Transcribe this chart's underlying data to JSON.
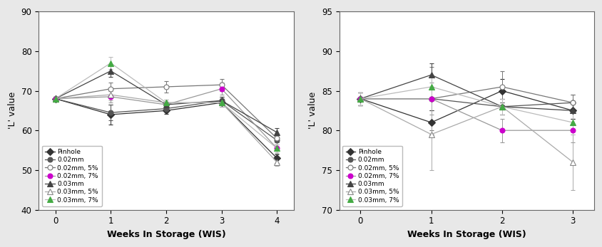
{
  "left": {
    "ylabel": "'L' value",
    "xlabel": "Weeks In Storage (WIS)",
    "xlim": [
      -0.3,
      4.3
    ],
    "ylim": [
      40,
      90
    ],
    "yticks": [
      40,
      50,
      60,
      70,
      80,
      90
    ],
    "xticks": [
      0,
      1,
      2,
      3,
      4
    ],
    "series": [
      {
        "label": "Pinhole",
        "x": [
          0,
          1,
          2,
          3,
          4
        ],
        "y": [
          68.0,
          64.0,
          65.0,
          67.0,
          53.0
        ],
        "yerr": [
          0.5,
          2.5,
          0.8,
          1.0,
          1.2
        ],
        "line_color": "#333333",
        "marker": "D",
        "markersize": 5,
        "mfc": "#333333",
        "mec": "#333333"
      },
      {
        "label": "0.02mm",
        "x": [
          0,
          1,
          2,
          3,
          4
        ],
        "y": [
          68.0,
          64.5,
          65.5,
          67.5,
          57.5
        ],
        "yerr": [
          0.5,
          2.0,
          0.8,
          1.0,
          1.0
        ],
        "line_color": "#555555",
        "marker": "o",
        "markersize": 5,
        "mfc": "#555555",
        "mec": "#555555"
      },
      {
        "label": "0.02mm, 5%",
        "x": [
          0,
          1,
          2,
          3,
          4
        ],
        "y": [
          68.0,
          70.5,
          71.0,
          71.5,
          58.0
        ],
        "yerr": [
          0.5,
          1.5,
          1.5,
          1.5,
          1.0
        ],
        "line_color": "#777777",
        "marker": "o",
        "markersize": 5,
        "mfc": "white",
        "mec": "#777777"
      },
      {
        "label": "0.02mm, 7%",
        "x": [
          0,
          1,
          2,
          3,
          4
        ],
        "y": [
          68.0,
          68.5,
          66.5,
          70.5,
          55.5
        ],
        "yerr": [
          0.5,
          1.5,
          0.8,
          1.5,
          1.5
        ],
        "line_color": "#999999",
        "marker": "o",
        "markersize": 5,
        "mfc": "#cc00cc",
        "mec": "#cc00cc"
      },
      {
        "label": "0.03mm",
        "x": [
          0,
          1,
          2,
          3,
          4
        ],
        "y": [
          68.0,
          75.0,
          66.5,
          67.5,
          59.5
        ],
        "yerr": [
          0.5,
          1.5,
          0.8,
          1.0,
          1.0
        ],
        "line_color": "#444444",
        "marker": "^",
        "markersize": 6,
        "mfc": "#444444",
        "mec": "#444444"
      },
      {
        "label": "0.03mm, 5%",
        "x": [
          0,
          1,
          2,
          3,
          4
        ],
        "y": [
          68.0,
          69.0,
          67.0,
          67.0,
          52.0
        ],
        "yerr": [
          0.5,
          1.5,
          0.8,
          1.0,
          1.0
        ],
        "line_color": "#aaaaaa",
        "marker": "^",
        "markersize": 6,
        "mfc": "white",
        "mec": "#888888"
      },
      {
        "label": "0.03mm, 7%",
        "x": [
          0,
          1,
          2,
          3,
          4
        ],
        "y": [
          68.0,
          77.0,
          67.0,
          67.0,
          55.5
        ],
        "yerr": [
          0.5,
          1.5,
          0.8,
          1.0,
          1.0
        ],
        "line_color": "#bbbbbb",
        "marker": "^",
        "markersize": 6,
        "mfc": "#44aa44",
        "mec": "#44aa44"
      }
    ]
  },
  "right": {
    "ylabel": "'L' value",
    "xlabel": "Weeks In Storage (WIS)",
    "xlim": [
      -0.3,
      3.3
    ],
    "ylim": [
      70,
      95
    ],
    "yticks": [
      70,
      75,
      80,
      85,
      90,
      95
    ],
    "xticks": [
      0,
      1,
      2,
      3
    ],
    "series": [
      {
        "label": "Pinhole",
        "x": [
          0,
          1,
          2,
          3
        ],
        "y": [
          84.0,
          81.0,
          85.0,
          82.5
        ],
        "yerr": [
          0.8,
          1.5,
          1.5,
          1.0
        ],
        "line_color": "#333333",
        "marker": "D",
        "markersize": 5,
        "mfc": "#333333",
        "mec": "#333333"
      },
      {
        "label": "0.02mm",
        "x": [
          0,
          1,
          2,
          3
        ],
        "y": [
          84.0,
          84.0,
          83.0,
          83.5
        ],
        "yerr": [
          0.8,
          1.5,
          1.0,
          1.0
        ],
        "line_color": "#555555",
        "marker": "o",
        "markersize": 5,
        "mfc": "#555555",
        "mec": "#555555"
      },
      {
        "label": "0.02mm, 5%",
        "x": [
          0,
          1,
          2,
          3
        ],
        "y": [
          84.0,
          84.0,
          85.5,
          83.5
        ],
        "yerr": [
          0.8,
          4.0,
          2.0,
          1.0
        ],
        "line_color": "#777777",
        "marker": "o",
        "markersize": 5,
        "mfc": "white",
        "mec": "#777777"
      },
      {
        "label": "0.02mm, 7%",
        "x": [
          0,
          1,
          2,
          3
        ],
        "y": [
          84.0,
          84.0,
          80.0,
          80.0
        ],
        "yerr": [
          0.8,
          2.0,
          1.5,
          1.5
        ],
        "line_color": "#999999",
        "marker": "o",
        "markersize": 5,
        "mfc": "#cc00cc",
        "mec": "#cc00cc"
      },
      {
        "label": "0.03mm",
        "x": [
          0,
          1,
          2,
          3
        ],
        "y": [
          84.0,
          87.0,
          83.0,
          82.5
        ],
        "yerr": [
          0.8,
          1.5,
          1.0,
          1.0
        ],
        "line_color": "#444444",
        "marker": "^",
        "markersize": 6,
        "mfc": "#444444",
        "mec": "#444444"
      },
      {
        "label": "0.03mm, 5%",
        "x": [
          0,
          1,
          2,
          3
        ],
        "y": [
          84.0,
          79.5,
          83.0,
          76.0
        ],
        "yerr": [
          0.8,
          4.5,
          1.0,
          3.5
        ],
        "line_color": "#aaaaaa",
        "marker": "^",
        "markersize": 6,
        "mfc": "white",
        "mec": "#888888"
      },
      {
        "label": "0.03mm, 7%",
        "x": [
          0,
          1,
          2,
          3
        ],
        "y": [
          84.0,
          85.5,
          83.0,
          81.0
        ],
        "yerr": [
          0.8,
          1.5,
          1.0,
          1.5
        ],
        "line_color": "#bbbbbb",
        "marker": "^",
        "markersize": 6,
        "mfc": "#44aa44",
        "mec": "#44aa44"
      }
    ]
  },
  "figure_bg": "#e8e8e8",
  "axes_bg": "#ffffff"
}
